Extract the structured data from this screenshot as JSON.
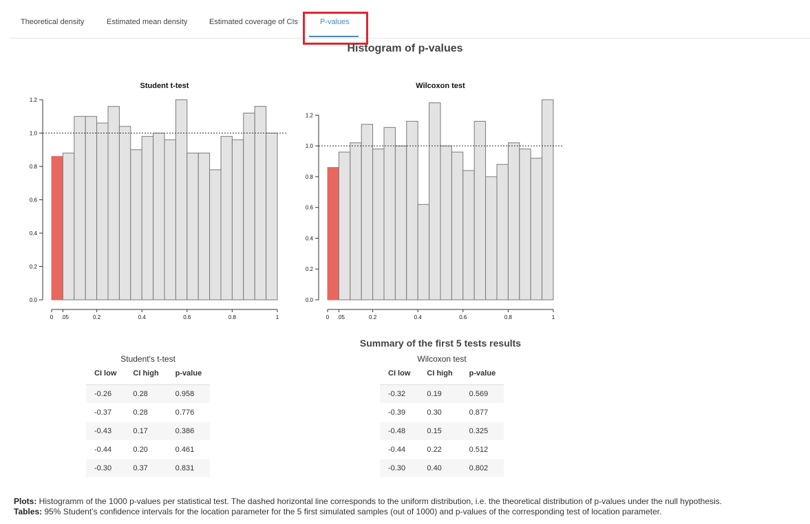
{
  "tabs": [
    {
      "label": "Theoretical density"
    },
    {
      "label": "Estimated mean density"
    },
    {
      "label": "Estimated coverage of CIs"
    },
    {
      "label": "P-values"
    }
  ],
  "main_title": "Histogram of p-values",
  "chart_data": [
    {
      "type": "bar",
      "title": "Student t-test",
      "bin_edges": [
        0,
        0.05,
        0.1,
        0.15,
        0.2,
        0.25,
        0.3,
        0.35,
        0.4,
        0.45,
        0.5,
        0.55,
        0.6,
        0.65,
        0.7,
        0.75,
        0.8,
        0.85,
        0.9,
        0.95,
        1
      ],
      "values": [
        0.86,
        0.88,
        1.1,
        1.1,
        1.06,
        1.16,
        1.04,
        0.9,
        0.98,
        1.0,
        0.96,
        1.2,
        0.88,
        0.88,
        0.78,
        0.98,
        0.96,
        1.12,
        1.16,
        1.0
      ],
      "highlight_bins": [
        0
      ],
      "reference_line": 1.0,
      "xticks": [
        "0",
        ".05",
        "0.2",
        "0.4",
        "0.6",
        "0.8",
        "1"
      ],
      "xtick_values": [
        0,
        0.05,
        0.2,
        0.4,
        0.6,
        0.8,
        1
      ],
      "yticks": [
        "0.0",
        "0.2",
        "0.4",
        "0.6",
        "0.8",
        "1.0",
        "1.2"
      ],
      "ylim": [
        0,
        1.2
      ],
      "colors": {
        "highlight": "#e8685f",
        "bar": "#e3e3e3",
        "edge": "#7a7a7a"
      }
    },
    {
      "type": "bar",
      "title": "Wilcoxon test",
      "bin_edges": [
        0,
        0.05,
        0.1,
        0.15,
        0.2,
        0.25,
        0.3,
        0.35,
        0.4,
        0.45,
        0.5,
        0.55,
        0.6,
        0.65,
        0.7,
        0.75,
        0.8,
        0.85,
        0.9,
        0.95,
        1
      ],
      "values": [
        0.86,
        0.96,
        1.02,
        1.14,
        0.98,
        1.12,
        1.0,
        1.16,
        0.62,
        1.28,
        1.0,
        0.96,
        0.84,
        1.16,
        0.8,
        0.88,
        1.02,
        0.98,
        0.92,
        1.3
      ],
      "highlight_bins": [
        0
      ],
      "reference_line": 1.0,
      "xticks": [
        "0",
        ".05",
        "0.2",
        "0.4",
        "0.6",
        "0.8",
        "1"
      ],
      "xtick_values": [
        0,
        0.05,
        0.2,
        0.4,
        0.6,
        0.8,
        1
      ],
      "yticks": [
        "0.0",
        "0.2",
        "0.4",
        "0.6",
        "0.8",
        "1.0",
        "1.2"
      ],
      "ylim": [
        0,
        1.3
      ],
      "colors": {
        "highlight": "#e8685f",
        "bar": "#e3e3e3",
        "edge": "#7a7a7a"
      }
    }
  ],
  "summary_title": "Summary of the first 5 tests results",
  "tables": [
    {
      "caption": "Student's t-test",
      "headers": [
        "CI low",
        "CI high",
        "p-value"
      ],
      "rows": [
        [
          "-0.26",
          "0.28",
          "0.958"
        ],
        [
          "-0.37",
          "0.28",
          "0.776"
        ],
        [
          "-0.43",
          "0.17",
          "0.386"
        ],
        [
          "-0.44",
          "0.20",
          "0.461"
        ],
        [
          "-0.30",
          "0.37",
          "0.831"
        ]
      ]
    },
    {
      "caption": "Wilcoxon test",
      "headers": [
        "CI low",
        "CI high",
        "p-value"
      ],
      "rows": [
        [
          "-0.32",
          "0.19",
          "0.569"
        ],
        [
          "-0.39",
          "0.30",
          "0.877"
        ],
        [
          "-0.48",
          "0.15",
          "0.325"
        ],
        [
          "-0.44",
          "0.22",
          "0.512"
        ],
        [
          "-0.30",
          "0.40",
          "0.802"
        ]
      ]
    }
  ],
  "caption": {
    "plots_label": "Plots:",
    "plots_text": " Histogramm of the 1000 p-values per statistical test. The dashed horizontal line corresponds to the uniform distribution, i.e. the theoretical distribution of p-values under the null hypothesis.",
    "tables_label": "Tables:",
    "tables_text": " 95% Student’s confidence intervals for the location parameter for the 5 first simulated samples (out of 1000) and p-values of the corresponding test of location parameter."
  }
}
